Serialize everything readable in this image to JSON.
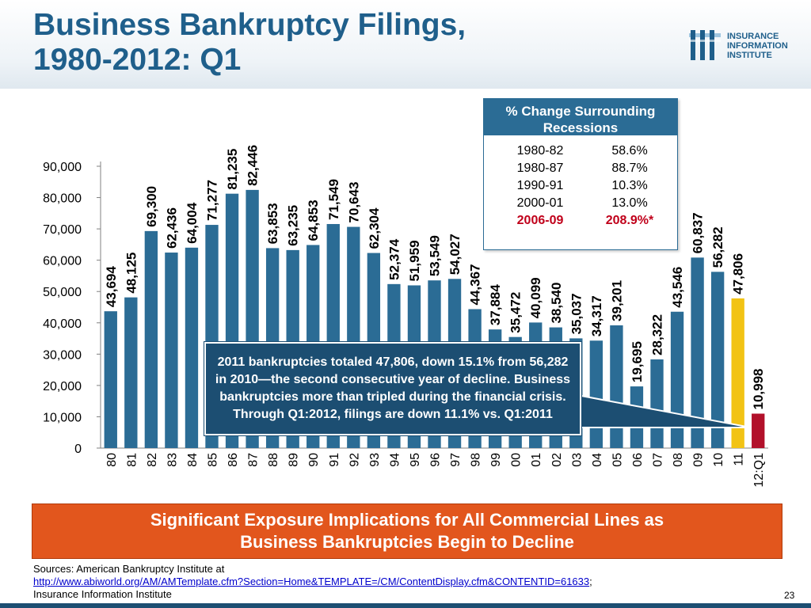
{
  "title_line1": "Business Bankruptcy Filings,",
  "title_line2": "1980-2012: Q1",
  "logo": {
    "line1": "INSURANCE",
    "line2": "INFORMATION",
    "line3": "INSTITUTE"
  },
  "legend": {
    "title": "% Change Surrounding Recessions",
    "rows": [
      {
        "period": "1980-82",
        "change": "58.6%"
      },
      {
        "period": "1980-87",
        "change": "88.7%"
      },
      {
        "period": "1990-91",
        "change": "10.3%"
      },
      {
        "period": "2000-01",
        "change": "13.0%"
      },
      {
        "period": "2006-09",
        "change": "208.9%*"
      }
    ]
  },
  "callout": "2011 bankruptcies totaled 47,806, down 15.1% from 56,282 in 2010—the second consecutive year of decline.  Business bankruptcies more than tripled during the financial crisis. Through Q1:2012, filings are down 11.1% vs. Q1:2011",
  "banner": {
    "line1": "Significant Exposure Implications for All Commercial Lines as",
    "line2": "Business Bankruptcies Begin to Decline"
  },
  "sources": {
    "line1": "Sources: American Bankruptcy Institute at",
    "link": "http://www.abiworld.org/AM/AMTemplate.cfm?Section=Home&TEMPLATE=/CM/ContentDisplay.cfm&CONTENTID=61633",
    "semicolon": ";",
    "line3": "Insurance Information Institute"
  },
  "page_number": "23",
  "colors": {
    "bar": "#2b6c95",
    "bar_2011": "#f2c314",
    "bar_2012": "#b2102a",
    "highlight_text": "#c0001a",
    "banner": "#e2561d",
    "title": "#1f5f8b"
  },
  "chart_data": {
    "type": "bar",
    "categories": [
      "80",
      "81",
      "82",
      "83",
      "84",
      "85",
      "86",
      "87",
      "88",
      "89",
      "90",
      "91",
      "92",
      "93",
      "94",
      "95",
      "96",
      "97",
      "98",
      "99",
      "00",
      "01",
      "02",
      "03",
      "04",
      "05",
      "06",
      "07",
      "08",
      "09",
      "10",
      "11",
      "12:Q1"
    ],
    "values": [
      43694,
      48125,
      69300,
      62436,
      64004,
      71277,
      81235,
      82446,
      63853,
      63235,
      64853,
      71549,
      70643,
      62304,
      52374,
      51959,
      53549,
      54027,
      44367,
      37884,
      35472,
      40099,
      38540,
      35037,
      34317,
      39201,
      19695,
      28322,
      43546,
      60837,
      56282,
      47806,
      10998
    ],
    "value_labels": [
      "43,694",
      "48,125",
      "69,300",
      "62,436",
      "64,004",
      "71,277",
      "81,235",
      "82,446",
      "63,853",
      "63,235",
      "64,853",
      "71,549",
      "70,643",
      "62,304",
      "52,374",
      "51,959",
      "53,549",
      "54,027",
      "44,367",
      "37,884",
      "35,472",
      "40,099",
      "38,540",
      "35,037",
      "34,317",
      "39,201",
      "19,695",
      "28,322",
      "43,546",
      "60,837",
      "56,282",
      "47,806",
      "10,998"
    ],
    "yticks": [
      0,
      10000,
      20000,
      30000,
      40000,
      50000,
      60000,
      70000,
      80000,
      90000
    ],
    "ytick_labels": [
      "0",
      "10,000",
      "20,000",
      "30,000",
      "40,000",
      "50,000",
      "60,000",
      "70,000",
      "80,000",
      "90,000"
    ],
    "ylim": [
      0,
      90000
    ],
    "grid": false,
    "title": "Business Bankruptcy Filings, 1980-2012: Q1",
    "xlabel": "",
    "ylabel": ""
  }
}
